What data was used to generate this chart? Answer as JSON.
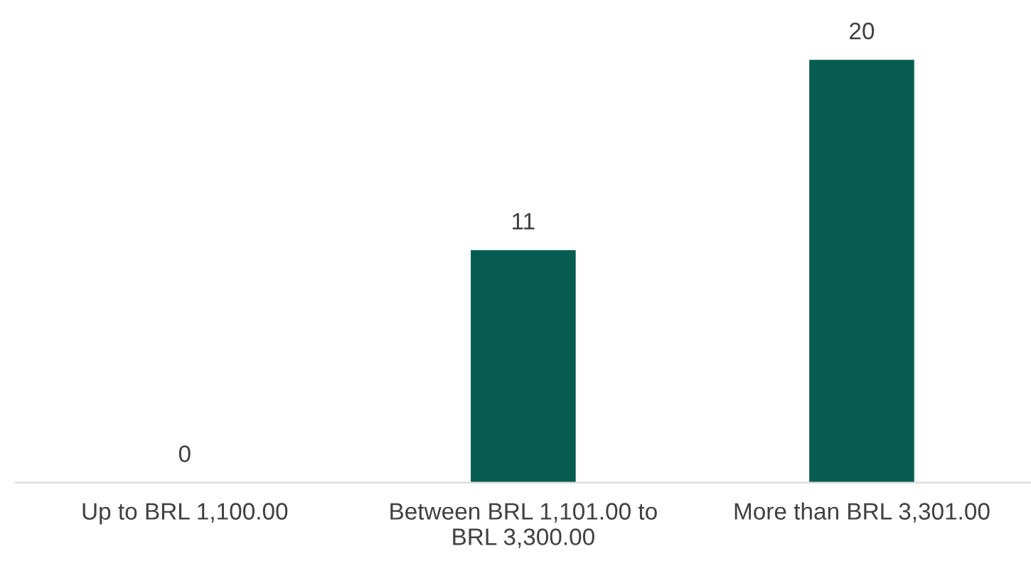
{
  "chart_data": {
    "type": "bar",
    "categories": [
      "Up to BRL 1,100.00",
      "Between BRL 1,101.00 to\nBRL 3,300.00",
      "More than BRL 3,301.00"
    ],
    "values": [
      0,
      11,
      20
    ],
    "color": "#065c50",
    "data_labels": true,
    "grid": false,
    "legend": false,
    "tick_labels": "x"
  }
}
